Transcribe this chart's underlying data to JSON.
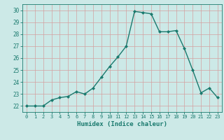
{
  "x": [
    0,
    1,
    2,
    3,
    4,
    5,
    6,
    7,
    8,
    9,
    10,
    11,
    12,
    13,
    14,
    15,
    16,
    17,
    18,
    19,
    20,
    21,
    22,
    23
  ],
  "y": [
    22.0,
    22.0,
    22.0,
    22.5,
    22.7,
    22.8,
    23.2,
    23.0,
    23.5,
    24.4,
    25.3,
    26.1,
    27.0,
    29.9,
    29.8,
    29.7,
    28.2,
    28.2,
    28.3,
    26.8,
    25.0,
    23.1,
    23.5,
    22.7
  ],
  "xlabel": "Humidex (Indice chaleur)",
  "ylim": [
    21.5,
    30.5
  ],
  "xlim": [
    -0.5,
    23.5
  ],
  "bg_color": "#cce9e7",
  "grid_color": "#b8d8d6",
  "line_color": "#1a7a6e",
  "marker_color": "#1a7a6e",
  "tick_color": "#1a7a6e",
  "label_color": "#1a7a6e",
  "yticks": [
    22,
    23,
    24,
    25,
    26,
    27,
    28,
    29,
    30
  ],
  "xticks": [
    0,
    1,
    2,
    3,
    4,
    5,
    6,
    7,
    8,
    9,
    10,
    11,
    12,
    13,
    14,
    15,
    16,
    17,
    18,
    19,
    20,
    21,
    22,
    23
  ]
}
